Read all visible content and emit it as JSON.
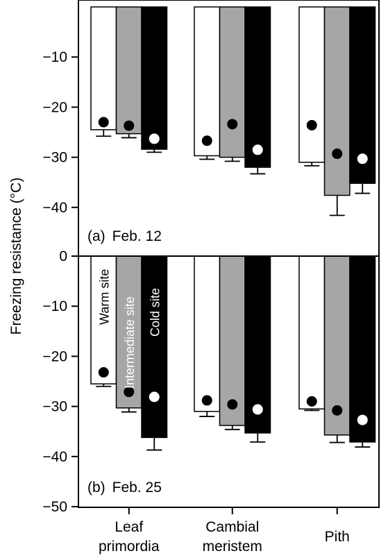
{
  "chart_data": {
    "type": "bar",
    "ylabel": "Freezing resistance (°C)",
    "categories": [
      "Leaf\nprimordia",
      "Cambial\nmeristem",
      "Pith"
    ],
    "series_names": [
      "Warm site",
      "Intermediate site",
      "Cold site"
    ],
    "colors": {
      "warm": "#ffffff",
      "intermediate": "#a6a6a6",
      "cold": "#000000"
    },
    "panels": [
      {
        "label": "(a)",
        "date": "Feb. 12",
        "ylim": [
          -50,
          0
        ],
        "yticks": [
          -10,
          -20,
          -30,
          -40
        ],
        "series": [
          {
            "name": "Warm site",
            "values": [
              -24.5,
              -29.7,
              -31.0
            ],
            "errors": [
              1.3,
              0.7,
              0.7
            ],
            "points": [
              -23.0,
              -26.7,
              -23.6
            ]
          },
          {
            "name": "Intermediate site",
            "values": [
              -25.3,
              -30.0,
              -37.6
            ],
            "errors": [
              0.8,
              0.8,
              4.0
            ],
            "points": [
              -23.7,
              -23.4,
              -29.3
            ]
          },
          {
            "name": "Cold site",
            "values": [
              -28.4,
              -32.0,
              -35.2
            ],
            "errors": [
              0.6,
              1.3,
              2.0
            ],
            "points": [
              -26.3,
              -28.5,
              -30.3
            ]
          }
        ]
      },
      {
        "label": "(b)",
        "date": "Feb. 25",
        "ylim": [
          -50,
          0
        ],
        "yticks": [
          0,
          -10,
          -20,
          -30,
          -40,
          -50
        ],
        "series": [
          {
            "name": "Warm site",
            "values": [
              -25.5,
              -31.0,
              -30.5
            ],
            "errors": [
              0.5,
              1.0,
              0.3
            ],
            "points": [
              -23.2,
              -28.8,
              -29.0
            ]
          },
          {
            "name": "Intermediate site",
            "values": [
              -30.3,
              -33.8,
              -35.7
            ],
            "errors": [
              0.8,
              0.8,
              1.5
            ],
            "points": [
              -27.1,
              -29.6,
              -30.8
            ]
          },
          {
            "name": "Cold site",
            "values": [
              -36.2,
              -35.3,
              -37.1
            ],
            "errors": [
              2.5,
              1.8,
              1.0
            ],
            "points": [
              -28.1,
              -30.6,
              -32.7
            ]
          }
        ]
      }
    ]
  }
}
